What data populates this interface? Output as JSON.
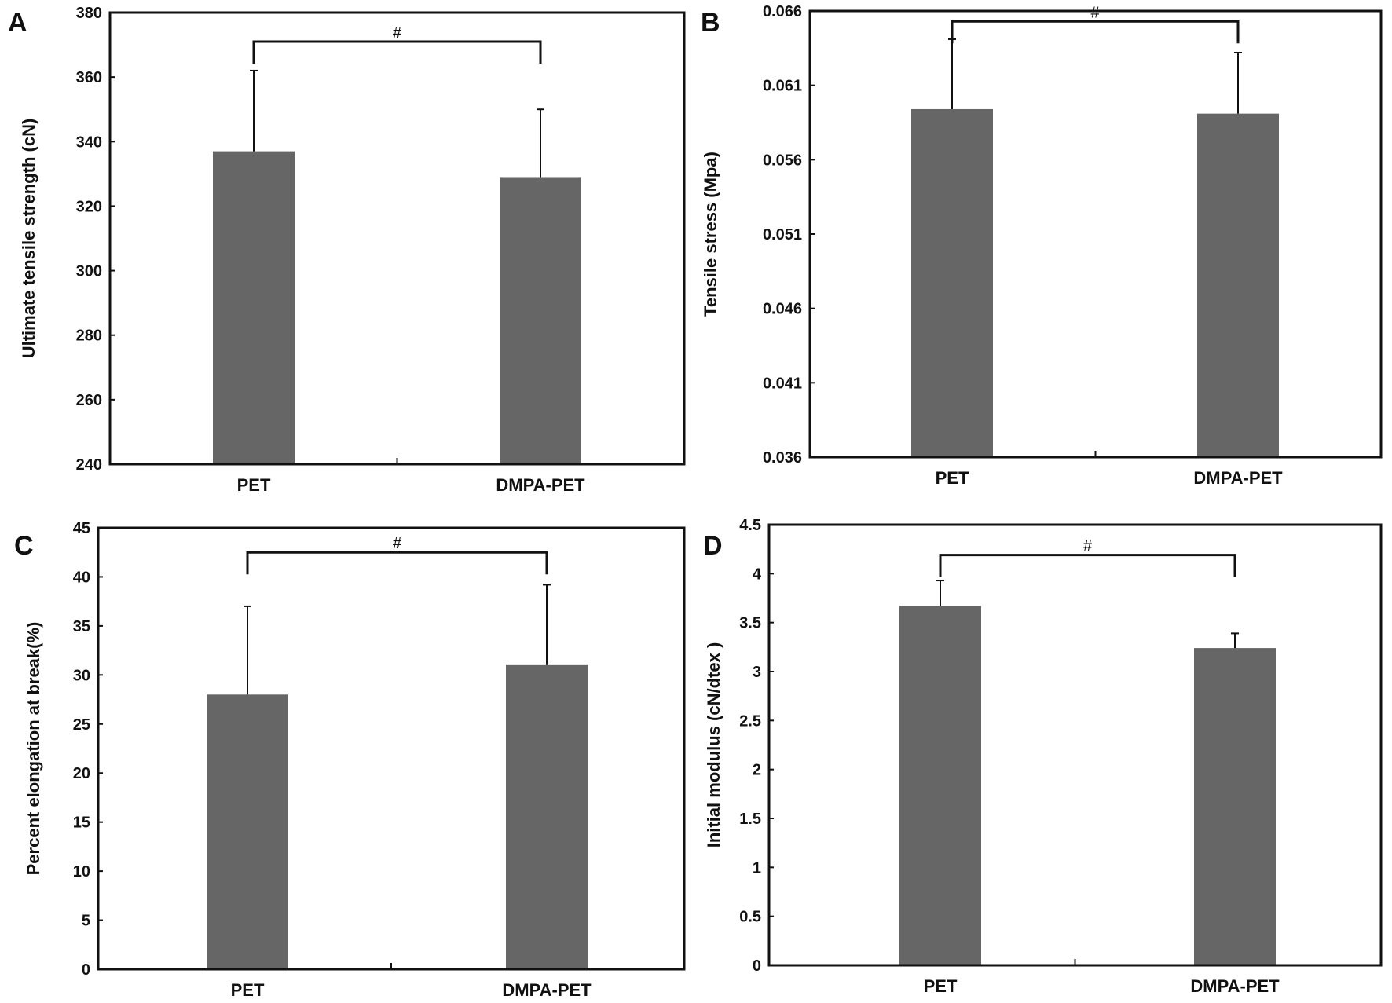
{
  "bar_color": "#666666",
  "chart_data": [
    {
      "panel": "A",
      "type": "bar",
      "categories": [
        "PET",
        "DMPA-PET"
      ],
      "values": [
        337,
        329
      ],
      "error_upper": [
        362,
        350
      ],
      "ylabel": "Ultimate tensile strength (cN)",
      "ylim": [
        240,
        380
      ],
      "yticks": [
        "240",
        "260",
        "280",
        "300",
        "320",
        "340",
        "360",
        "380"
      ],
      "significance": {
        "label": "#",
        "level": 371
      },
      "grid": false
    },
    {
      "panel": "B",
      "type": "bar",
      "categories": [
        "PET",
        "DMPA-PET"
      ],
      "values": [
        0.0594,
        0.0591
      ],
      "error_upper": [
        0.0641,
        0.0632
      ],
      "ylabel": "Tensile stress (Mpa)",
      "ylim": [
        0.036,
        0.066
      ],
      "yticks": [
        "0.036",
        "0.041",
        "0.046",
        "0.051",
        "0.056",
        "0.061",
        "0.066"
      ],
      "significance": {
        "label": "#",
        "level": 0.0653
      },
      "grid": false
    },
    {
      "panel": "C",
      "type": "bar",
      "categories": [
        "PET",
        "DMPA-PET"
      ],
      "values": [
        28,
        31
      ],
      "error_upper": [
        37,
        39.2
      ],
      "ylabel": "Percent elongation at break(%)",
      "ylim": [
        0,
        45
      ],
      "yticks": [
        "0",
        "5",
        "10",
        "15",
        "20",
        "25",
        "30",
        "35",
        "40",
        "45"
      ],
      "significance": {
        "label": "#",
        "level": 42.5
      },
      "grid": false
    },
    {
      "panel": "D",
      "type": "bar",
      "categories": [
        "PET",
        "DMPA-PET"
      ],
      "values": [
        3.67,
        3.24
      ],
      "error_upper": [
        3.93,
        3.39
      ],
      "ylabel": "Initial modulus (cN/dtex )",
      "ylim": [
        0,
        4.5
      ],
      "yticks": [
        "0",
        "0.5",
        "1",
        "1.5",
        "2",
        "2.5",
        "3",
        "3.5",
        "4",
        "4.5"
      ],
      "significance": {
        "label": "#",
        "level": 4.19
      },
      "grid": false
    }
  ]
}
